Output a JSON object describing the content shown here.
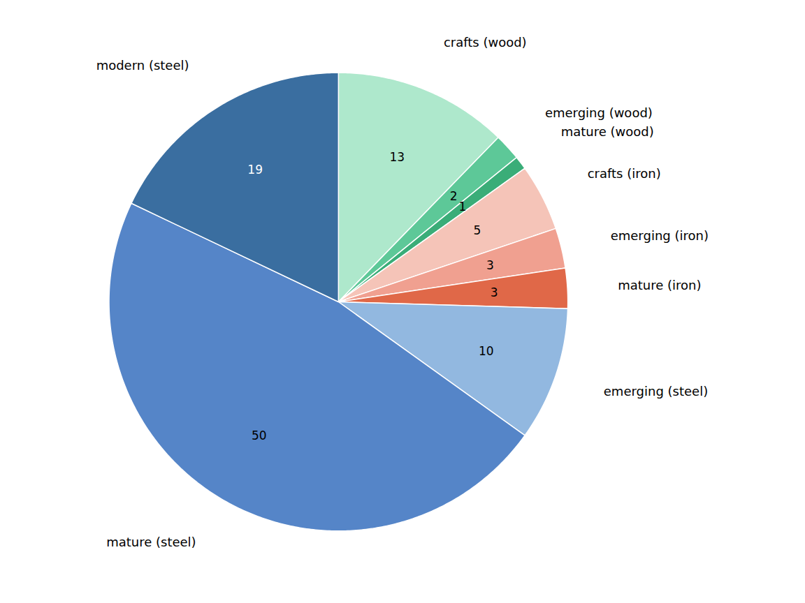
{
  "chart_data": {
    "type": "pie",
    "categories": [
      "crafts (wood)",
      "emerging (wood)",
      "mature (wood)",
      "crafts (iron)",
      "emerging (iron)",
      "mature (iron)",
      "emerging (steel)",
      "mature (steel)",
      "modern (steel)"
    ],
    "values": [
      13,
      2,
      1,
      5,
      3,
      3,
      10,
      50,
      19
    ],
    "colors": [
      "#aee8cc",
      "#5dc898",
      "#3aad78",
      "#f5c4b8",
      "#f0a090",
      "#e06848",
      "#92b8e0",
      "#5585c8",
      "#3a6ea0"
    ],
    "data_labels": true
  }
}
